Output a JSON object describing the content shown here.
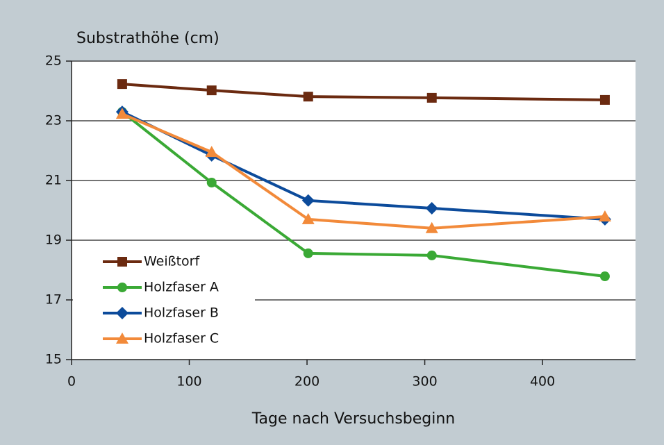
{
  "chart_data": {
    "type": "line",
    "y_label": "Substrathöhe (cm)",
    "x_label": "Tage nach Versuchsbeginn",
    "x": [
      43,
      119,
      201,
      306,
      453
    ],
    "series": [
      {
        "name": "Weißtorf",
        "color": "#6b2a10",
        "marker": "square",
        "values": [
          24.23,
          24.02,
          23.81,
          23.77,
          23.7
        ]
      },
      {
        "name": "Holzfaser A",
        "color": "#3aa935",
        "marker": "circle",
        "values": [
          23.3,
          20.93,
          18.56,
          18.49,
          17.79
        ]
      },
      {
        "name": "Holzfaser B",
        "color": "#0c4b9b",
        "marker": "diamond",
        "values": [
          23.3,
          21.84,
          20.33,
          20.07,
          19.7
        ]
      },
      {
        "name": "Holzfaser C",
        "color": "#f28a3a",
        "marker": "triangle",
        "values": [
          23.23,
          21.95,
          19.7,
          19.4,
          19.79
        ]
      }
    ],
    "xlim": [
      0,
      479
    ],
    "ylim": [
      15,
      25
    ],
    "xticks": [
      0,
      100,
      200,
      300,
      400
    ],
    "yticks": [
      15,
      17,
      19,
      21,
      23,
      25
    ],
    "grid": true,
    "legend": "lower-left"
  }
}
